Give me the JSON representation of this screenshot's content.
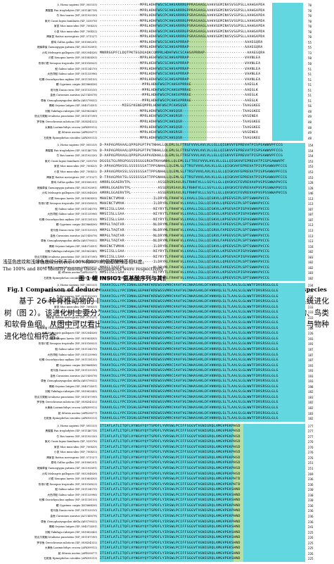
{
  "colors": {
    "light_blue": "#63d7df",
    "light_green": "#b8dea2"
  },
  "alignment": {
    "species_lines": [
      "人 Homo sapiens (NP_005533)",
      "黑猩猩 Pan troglodytes (XP_001146718)",
      "牛 Bos taurus (NP_001192530)",
      "家犬 Canis lupus familiaris (XP_533076)",
      "家鼠 Mus musculus (NP_700453)",
      "小鼠 Mus musculus (NP_700452)",
      "褐家鼠 Rattus norvegicus (NP_071527)",
      "原鸡 Gallus gallus (NP_001006201)",
      "斑胸草雀 Taeniopygia guttata (XP_002192891)",
      "火鸡 Meleagris gallopavo (XP_003204826)",
      "爪蟾 Xenopus laevis (NP_001085493)",
      "热带爪蟾 Xenopus tropicalis (NP_001016823)",
      "鲑 Salmo salar (NP_001134570)",
      "大西洋鲑 Salmo salar (NP_001133996)",
      "虹鳟 Oncorhynchus mykiss (NP_001118155)",
      "鲤 Cyprinus carpio (KC866456)",
      "斑马鱼 Danio rerio (NP_001153510)",
      "金鱼 Carassius auratus (ACU45678)",
      "草鱼 Ctenopharyngodon idella (AEG79832)",
      "青鳉 Oryzias latipes (XP_004072491)",
      "河鲀 Takifugu rubripes (XP_003962843)",
      "斑点叉尾鮰 Ictalurus punctatus (NP_001187590)",
      "罗非鱼 Oreochromis niloticus (XP_003454322)",
      "大黄鱼 Larimichthys crocea (AFK09912)",
      "鲇 Silurus asotus (AFR25677)",
      "石斑鱼 Epinephelus coioides (AFK93513)"
    ],
    "blocks": [
      {
        "sequences": [
          "------------------MPRLHDHFWSCSCAHSARRRGPPRASAAGLAAKVGEMINVSVSGPSLLAAHGAPDA",
          "------------------MPRLHDHFWSCSCAHSARRRGPPRASAAGLAAKVGEMINVSVSGPSLLAAHGAPDA",
          "------------------MPRLHDHFWSCPCAHSARRRGPSRASAAGLAAKVGEMINVSVSGPSLLAAHGAPDA",
          "------------------MPRLHDHFWSCPCAHGARRRGPPRASAAGLAAKVGEMINVSVSGPSLLAAHGAPDA",
          "------------------MPRLHDHFWSCPCAHSARRRGPSRASAAGLAAKVGEMINVSVSGPSLLAAHGAPDA",
          "------------------MPRLHDHFWSCPCAHSARRRGPSRASAAGLAAKVGEMINVSVSGPSLLAAHGAPDA",
          "------------------MPRLHDHFWSCPCAHSARRRGPSRASAAGLAAKVGEMINVSVSGPSLLAAHGAPDA",
          "------------------MPRLHDHFWSCSCAHSAPRRAP-------------------------AAAEGQRA",
          "------------------MPRLHDHFWSCSCAHSAPRRAP-------------------------AAAEGQRA",
          "MNRRGGPFCLDQTPKTEGDQAQKCQMPRLHDHFWSCSCAHSAPRRAP-------------------AAAEGQRA",
          "------------------MPRLHEHFWSCSCAHSAPRRAP-------------------------VAVNLEA",
          "------------------MPRLHEHFWSCSCAHSAPRRAP-------------------------VAVNLEA",
          "------------------MPRLHDHFWSCSCAHSAPRRAP-------------------------VAANLEA",
          "------------------MPRLHDHFWSCSCAHSAPRRAP-------------------------VAANLEA",
          "------------------MPRLHDHFWSCSCAHSAPRRAP-------------------------VAANLEA",
          "-------------------MPRLHDHFWSCPCAHSVPRRAE------------------------AAEGLK",
          "-------------------MPRLHDHFWSCPCAHSVPRRAE------------------------AAEGLK",
          "-------------------MPRLHDHFWSCPCAHSVPRRAE------------------------AAEGLK",
          "-------------------MPRLHDHFWSCPCAHSVPRRAE------------------------AAEGLK",
          "----------MIEGYKGNEQMPRLHDHFWSCPCAHSQSR-------------------------TAAGGKEE",
          "------------------MPRLHDHFWSCPCAHSQSR---------------------------TAAGGKEE",
          "------------------MPRLHEHFWSCPCAHSRSR---------------------------VASENEA",
          "------------------MPRLHDHFWSCPCAHSQSR---------------------------TAAGGKEE",
          "------------------MPRLHDHFWSCPCAHSQSR---------------------------TAAGGKEE",
          "------------------MPRLHEHFWSCPCAHSRSR---------------------------VASENEA",
          "------------------MPRLHDHFWSCPCAHSQSR---------------------------TAAGGKEE"
        ],
        "numbers": [
          "70",
          "70",
          "70",
          "70",
          "70",
          "70",
          "70",
          "55",
          "55",
          "73",
          "50",
          "50",
          "51",
          "51",
          "51",
          "51",
          "51",
          "51",
          "51",
          "56",
          "48",
          "49",
          "48",
          "48",
          "49",
          "48"
        ],
        "shading": [
          {
            "color": "light_blue",
            "start": 0.27,
            "end": 0.43
          },
          {
            "color": "light_green",
            "start": 0.43,
            "end": 0.52
          },
          {
            "color": "light_blue",
            "start": 0.84,
            "end": 0.99
          }
        ]
      },
      {
        "sequences": [
          "D-PAPAGPRAAALQPPGPGPTPVTNHHLLQLEMLSLFTRSFVVVLAVLVLLGLLQIGKVVFEPREVATPISPSAWWVPFCCG",
          "D-PAPAGPRAAALQPPGPGPTPVTNHHLLQLEMLSLFTRSFVVVLAVLVLLGLLQIGKVVFEPREVATPISPSAWWVPFCCG",
          "D-AAPAGPRAAGLQPPGPGAAPAADHHLLQLEMLSLFTRSFVVVLAVLVLLGLLQIGKVVFEPREVATPISPSAWWVPFCCG",
          "DGGSGTGLRRGPGGSSSGGGGRGHTNVAWNHLLQLEMLSLFTRSFVVVLAVLVLLGLLQIGKVVFEPREVATPISPSAWWVPF",
          "D-APAAGPRASSLSSSSSSSATTPPSNHHLLQLEMLSLFTRSFVVVLAVLVLLGLLQIGKVVFEPREVATPISPSAWWVPFCCG",
          "D-APAAGPRASSLSSSSSSSATTPPSNHHLLQLEMLSLFTRSFVVVLAVLVLLGLLQIGKVVFEPREVATPISPSAWWVPFCCG",
          "D-TPAAGPRATSLSSSSSSSATTPPSNHHLLQLEMLSLFTRSFVVVLAVLVLLGLLQIGKVVFEPREVATPISPSAWWVPFCCG",
          "AMRRLGGAERVTPL------------ASSERSRSAVLRLFRHHFVLLLSGYLLGLLQVGKVIFEVREVAVPVSPSSWWAPVCCG",
          "AMRRLGGAERVTPL------------ASSERSRSAVLRLFRHHFVLLLSGYLLGLLQVGKVIFEVREVAVPVSPSSWWAPVCCG",
          "AMRRLGGAERVTPL------------ASSERSRSAVLRLFRHHFVLLLSGYLLGLLQVGKVIFEVREVAVPVSPSSWWAPVCCG",
          "MHHINCTVMAK-------------ILDRYRLFRHHFVLLVAALLIGLLQIGKVLLQPEEVSIPLSPTSWWAPVCCG",
          "MHHINCTVMAK-------------ILDRYRLFRHHFVLLVAALLIGLLQIGKVLLQPEEVSIPLSPTSWWAPVCCG",
          "MMSIISLLSAA-------------NIYRYTLFRHHFVLLVAALLIGLLQIGKVLLKPSEVAIPISPASWWAPVCCG",
          "MMSIISLLSAA-------------NIYRYTLFRHHFVLLVAALLIGLLQIGKVLLKPSEVAIPISPASWWAPVCCG",
          "MMSIISLLSAA-------------NIYRYTLFRHHFVLLVAALLIGLLQIGKVLLKPSEVAIPISPASWWAPVCCG",
          "MMPGLTAQTAR-------------NLDRYMLFRHHFVLLVAALLIGLLQIGRVLFAPEEVSIPLSPTSWWAPVCCG",
          "MMPGLTAQTAR-------------NLDRYMLFRHHFVLLVAALLIGLLQIGRVLFAPEEVSIPLSPTSWWAPVCCG",
          "MMPGLTAQTAR-------------NLDRYMLFRHHFVLLVAALLIGLLQIGRVLFAPEEVSIPLSPTSWWAPVCCG",
          "MMPGLTAQTAR-------------NLDRYMLFRHHFVLLVAALLIGLLQIGRVLFAPEEVSIPLSPTSWWAPVCCG",
          "MHHINCTVMAK-------------ILDRYRLFRHHFVLLVAALLIGLLQIGKVLLQPEEVSIPLSPTSWWAPVCCG",
          "MMSIISLLSAA-------------NIYRYTLFRHHFVLLVAALLIGLLQIGKVLLKPSEVAIPISPASWWAPVCCG",
          "MMSIISLLSAA-------------NIYRYTLFRHHFVLLVAALLIGLLQIGKVLLKPSEVAIPISPASWWAPVCCG",
          "MHHINCTVMAK-------------ILDRYRLFRHHFVLLVAALLIGLLQIGKVLLQPEEVSIPLSPTSWWAPVCCG",
          "MMPGLTAQTAR-------------NLDRYMLFRHHFVLLVAALLIGLLQIGRVLFAPEEVSIPLSPTSWWAPVCCG",
          "MMSIISLLSAA-------------NIYRYTLFRHHFVLLVAALLIGLLQIGKVLLKPSEVAIPISPASWWAPVCCG",
          "MHHINCTVMAK-------------ILDRYRLFRHHFVLLVAALLIGLLQIGKVLLQPEEVSIPLSPTSWWAPVCCG"
        ],
        "numbers": [
          "154",
          "154",
          "154",
          "153",
          "153",
          "153",
          "153",
          "128",
          "128",
          "146",
          "113",
          "113",
          "107",
          "107",
          "107",
          "113",
          "113",
          "113",
          "113",
          "118",
          "102",
          "103",
          "102",
          "102",
          "103",
          "102"
        ],
        "shading": [
          {
            "color": "light_green",
            "start": 0.32,
            "end": 0.4
          },
          {
            "color": "light_blue",
            "start": 0.4,
            "end": 1.0
          }
        ]
      },
      {
        "sequences": [
          "TAAAVIGLLYPCIDNHLGEPHKFKREWSSVMRCVAVFVGINHASAKLDFANNVQLSLTLAALSLGLWWTFDRSRSGLGLG",
          "TAAAVIGLLYPCIDNHLGEPHKFKREWSSVMRCVAVFVGINHASAKLDFANNVQLSLTLAALSLGLWWTFDRSRSGLGLG",
          "TAAAVIGLLYPCIDNHLGEPHKFKREWSSVMRCVAVFVGINHASAKLDFANNVQLSLTLAALSLGLWWTFDRSRSGLGLG",
          "TAAAVIGLLYPCIDNHLGEPHKFKREWSSVMRCVAVFVGINHASAKLDFANNVQLSLTLAALSLGLWWTFDRSRSGLGLG",
          "TAAAVIGLLYPCIDNHLGEPHKFKREWSSVMRCVAVFVGINHASAKLDFANNVQLSLTLAALSLGLWWTFDRSRSGLGLG",
          "TAAAVIGLLYPCIDNHLGEPHKFKREWSSVMRCVAVFVGINHASAKLDFANNVQLSLTLAALSLGLWWTFDRSRSGLGLG",
          "TAAAVIGLLYPCIDNHLGEPHKFKREWSSVMRCVAVFVGINHASAKLDFANNVQLSLTLAALSLGLWWTFDRSRSGLGLG",
          "TAAAVIGLLYPCIDNHLGEPHKFKREWSSVMRCIAVFVGINHASAKLDFANNVQLSLTLAALSLGLWWTFDRSRSGLGLG",
          "TAAAVIGLLYPCIDNHLGEPHKFKREWSSVMRCIAVFVGINHASAKLDFANNVQLSLTLAALSLGLWWTFDRSRSGLGLG",
          "TAAAVIGLLYPCIDNHLGEPHKFKREWSSVMRCIAVFVGINHASAKLDFANNVQLSLTLAALSLGLWWTFDRSRSGLGLG",
          "TAAAVIGLLYPCIDSHLGEPHKFKREWSSVMRCIAVFVGINHASAKLDFANNVQLSLTLAALSLGLWWTFDRSRSGLGLG",
          "TAAAVIGLLYPCIDSHLGEPHKFKREWSSVMRCIAVFVGINHASAKLDFANNVQLSLTLAALSLGLWWTFDRSRSGLGLG",
          "TAAAVLGLLYPCIDSHLGEPHKFKREWSSVMRCVAVFVGINHASAKLDFANNVQLSLTLAALSLGLWWTFDRSRSGLGLG",
          "TAAAVLGLLYPCIDSHLGEPHKFKREWSSVMRCVAVFVGINHASAKLDFANNVQLSLTLAALSLGLWWTFDRSRSGLGLG",
          "TAAAVLGLLYPCIDSHLGEPHKFKREWSSVMRCVAVFVGINHASAKLDFANNVQLSLTLAALSLGLWWTFDRSRSGLGLG",
          "TAAAVIGLLYPCIDSHLGEPHKFKREWSSVMRCIAVFVGINHASAKLDFANNVQLSLTLAALSLGLWWTFDRSRSGLGLG",
          "TAAAVIGLLYPCIDSHLGEPHKFKREWSSVMRCIAVFVGINHASAKLDFANNVQLSLTLAALSLGLWWTFDRSRSGLGLG",
          "TAAAVIGLLYPCIDSHLGEPHKFKREWSSVMRCIAVFVGINHASAKLDFANNVQLSLTLAALSLGLWWTFDRSRSGLGLG",
          "TAAAVIGLLYPCIDSHLGEPHKFKREWSSVMRCIAVFVGINHASAKLDFANNVQLSLTLAALSLGLWWTFDRSRSGLGLG",
          "TAAAVLGLLYPCIDSHLGEPHKFKREWSSVMRCVAVFVGINHASAKLDFANNVQLSLTLAALSLGLWWTFDRSRSGLGLG",
          "TAAAVLGLLYPCIDSHLGEPHKFKREWSSVMRCVAVFVGINHASAKLDFANNVQLSLTLAALSLGLWWTFDRSRSGLGLG",
          "TAAAVLGLLYPCIDSHLGEPHKFKREWSSVMRCVAVFVGINHASAKLDFANNVQLSLTLAALSLGLWWTFDRSRSGLGLG",
          "TAAAVLGLLYPCIDSHLGEPHKFKREWSSVMRCVAVFVGINHASAKLDFANNVQLSLTLAALSLGLWWTFDRSRSGLGLG",
          "TAAAVLGLLYPCIDSHLGEPHKFKREWSSVMRCVAVFVGINHASAKLDFANNVQLSLTLAALSLGLWWTFDRSRSGLGLG",
          "TAAAVLGLLYPCIDSHLGEPHKFKREWSSVMRCVAVFVGINHASAKLDFANNVQLSLTLAALSLGLWWTFDRSRSGLGLG",
          "TAAAVLGLLYPCIDSHLGEPHKFKREWSSVMRCVAVFVGINHASAKLDFANNVQLSLTLAALSLGLWWTFDRSRSGLGLG"
        ],
        "numbers": [
          "234",
          "234",
          "234",
          "233",
          "233",
          "233",
          "233",
          "208",
          "208",
          "226",
          "193",
          "193",
          "187",
          "187",
          "187",
          "193",
          "193",
          "193",
          "193",
          "198",
          "182",
          "183",
          "182",
          "182",
          "183",
          "182"
        ],
        "shading": [
          {
            "color": "light_blue",
            "start": 0.0,
            "end": 1.0
          }
        ]
      },
      {
        "sequences": [
          "ITIAFLATLITQFLVYNGVYQYTSPDFLYVRSWLPCIFFSGGVTVGNIGRQLAMGVPEKPHSD",
          "ITIAFLATLITQFLVYNGVYQYTSPDFLYVRSWLPCIFFSGGVTVGNIGRQLAMGVPEKPHSD",
          "ITIAFLATLITQFLVYNGVYQYTSPDFLYVRSWLPCIFFSGGVTVGNIGRQLAMGVPEKPHSD",
          "ITIAFLATLITQFLVYNGVYQYTSPDFLYVRSWLPCIFFSGGVTVGNIGRQLAMGVPEKPHSD",
          "ITIAFLATLITQFLVYNGVYQYTSPDFLYVRSWLPCIFFSGGVTVGNIGRQLAMGVPEKPHSD",
          "ITIAFLATLITQFLVYNGVYQYTSPDFLYVRSWLPCIFFSGGVTVGNIGRQLAMGVPEKPHSD",
          "ITIAFLATLITQFLVYNGVYQYTSPDFLYVRSWLPCIFFSGGVTVGNIGRQLAMGVPEKPHSD",
          "ITIAFLATLITQFLVYNGVYQYTSPDFLYVRSWLPCIFFSGGVTVGNIGRQLAMGVPEKPHSD",
          "ITIAFLATLITQFLVYNGVYQYTSPDFLYVRSWLPCIFFSGGVTVGNIGRQLAMGVPEKPHSD",
          "ITIAFLATLITQFLVYNGVYQYTSPDFLYVRSWLPCIFFSGGVTVGNIGRQLAMGVPEKPHSD",
          "ITIAFLATLITQFLVYNGVYQYTSPDFLYVRSWLPCIFFSGGVTVGNIGRQLAMGVPEKPHTD",
          "ITIAFLATLITQFLVYNGVYQYTSPDFLYVRSWLPCIFFSGGVTVGNIGRQLAMGVPEKPHTD",
          "ITIAFLATLITQFLVYNGVYQYTSPDFLYIRSWLPCIFFSGGVTVGNIGRQLAMGVPEKSHND",
          "ITIAFLATLITQFLVYNGVYQYTSPDFLYIRSWLPCIFFSGGVTVGNIGRQLAMGVPEKSHND",
          "ITIAFLATLITQFLVYNGVYQYTSPDFLYIRSWLPCIFFSGGVTVGNIGRQLAMGVPEKSHND",
          "ITIAFLATLITQFLVYNGVYQYTSPDFLYIRSWLPCIFFSGGVTVGNIGRQLAMGVPEKPHND",
          "ITIAFLATLITQFLVYNGVYQYTSPDFLYIRSWLPCIFFSGGVTVGNIGRQLAMGVPEKPHND",
          "ITIAFLATLITQFLVYNGVYQYTSPDFLYIRSWLPCIFFSGGVTVGNIGRQLAMGVPEKPHND",
          "ITIAFLATLITQFLVYNGVYQYTSPDFLYIRSWLPCIFFSGGVTVGNIGRQLAMGVPEKPHND",
          "ITIAFLATLITQFLVYNGVYQYTSPDFLYIRSWLPCIFFSGGVTVGNIGRQLAMGVPEKSHND",
          "ITIAFLATLITQFLVYNGVYQYTSPDFLYIRSWLPCIFFSGGVTVGNIGRQLAMGVPEKSHND",
          "ITIAFLATLITQFLVYNGVYQYTSPDFLYIRSWLPCIFFSGGVTVGNIGRQLAMGVPEKSHND",
          "ITIAFLATLITQFLVYNGVYQYTSPDFLYIRSWLPCIFFSGGVTVGNIGRQLAMGVPEKSHND",
          "ITIAFLATLITQFLVYNGVYQYTSPDFLYIRSWLPCIFFSGGVTVGNIGRQLAMGVPEKSHND",
          "ITIAFLATLITQFLVYNGVYQYTSPDFLYIRSWLPCIFFSGGVTVGNIGRQLAMGVPEKSHND",
          "ITIAFLATLITQFLVYNGVYQYTSPDFLYIRSWLPCIFFSGGVTVGNIGRQLAMGVPEKSHND"
        ],
        "numbers": [
          "277",
          "277",
          "277",
          "276",
          "276",
          "276",
          "276",
          "251",
          "251",
          "269",
          "236",
          "236",
          "230",
          "230",
          "230",
          "236",
          "236",
          "236",
          "236",
          "241",
          "225",
          "226",
          "225",
          "225",
          "226",
          "225"
        ],
        "shading": [
          {
            "color": "light_blue",
            "start": 0.0,
            "end": 0.31
          },
          {
            "color": "light_blue",
            "start": 0.31,
            "end": 0.65
          },
          {
            "color": "light_green",
            "start": 0.65,
            "end": 0.7
          },
          {
            "color": "light_blue",
            "start": 0.7,
            "end": 1.0
          }
        ]
      }
    ]
  },
  "note_cn": "浅蓝色底纹和浅绿色底纹分别表示100%和80%的氨基酸残基相似度。",
  "note_en": "The 100% and 80% identity among these sequences were respectively highlighted by light blue and light green shade.",
  "caption_cn": "图 1 鲤 INSIG1 氨基酸序列与其他物种的 INSIG1 氨基酸序列的比较",
  "caption_en": "Fig.1 Comparison of deduced amino acid sequences of Cyprinus carpio INSIG1 with other species",
  "body_text": "基于 26 种脊椎动物的 INSIG1 氨基酸序列，本研究构建得到 INSIG1 氨基酸序列的系统进化树（图 2）。该进化树主要分为两支：一支主要为硬骨鱼类，另一支包括哺乳动物、两栖动物、鸟类和软骨鱼纲。从图中可以看出鲤与鲫、斑马鱼、金线鲃的 INSIG1 氨基酸的进化关系较近，与物种进化地位相符合。"
}
